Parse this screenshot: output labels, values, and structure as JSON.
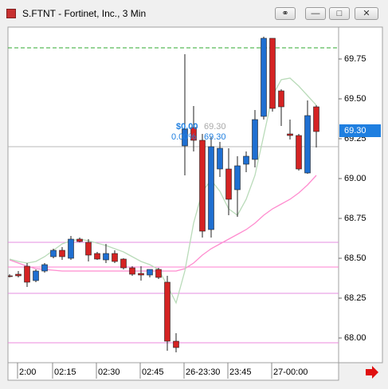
{
  "window": {
    "title": "S.FTNT - Fortinet, Inc., 3 Min"
  },
  "chart_data": {
    "type": "candlestick",
    "categories": [
      null,
      "2:00",
      null,
      null,
      null,
      "02:15",
      null,
      null,
      null,
      null,
      "02:30",
      null,
      null,
      null,
      null,
      "02:45",
      null,
      null,
      null,
      null,
      "26-23:30",
      null,
      null,
      null,
      null,
      "23:45",
      null,
      null,
      null,
      null,
      "27-00:00",
      null,
      null,
      null,
      null,
      null
    ],
    "open": [
      68.39,
      68.4,
      68.45,
      68.36,
      68.42,
      68.51,
      68.55,
      68.5,
      68.62,
      68.6,
      68.53,
      68.49,
      68.53,
      68.495,
      68.44,
      68.405,
      68.395,
      68.43,
      68.35,
      67.98,
      69.205,
      69.32,
      69.24,
      68.68,
      69.06,
      69.06,
      68.93,
      69.09,
      69.12,
      69.39,
      69.88,
      69.55,
      69.28,
      69.27,
      69.035,
      69.45
    ],
    "high": [
      68.4,
      68.42,
      68.47,
      68.43,
      68.47,
      68.56,
      68.57,
      68.64,
      68.63,
      68.62,
      68.54,
      68.59,
      68.55,
      68.5,
      68.45,
      68.45,
      68.43,
      68.44,
      68.39,
      68.03,
      69.78,
      69.455,
      69.28,
      69.26,
      69.23,
      69.19,
      69.14,
      69.17,
      69.43,
      69.89,
      69.88,
      69.56,
      69.37,
      69.28,
      69.49,
      69.46
    ],
    "low": [
      68.38,
      68.38,
      68.32,
      68.35,
      68.41,
      68.5,
      68.49,
      68.49,
      68.6,
      68.48,
      68.49,
      68.47,
      68.47,
      68.43,
      68.39,
      68.36,
      68.38,
      68.37,
      67.92,
      67.91,
      69.02,
      69.17,
      68.63,
      68.63,
      69.01,
      68.77,
      68.76,
      69.04,
      69.07,
      69.37,
      69.42,
      69.33,
      69.245,
      69.05,
      69.03,
      69.195
    ],
    "close": [
      68.385,
      68.39,
      68.35,
      68.42,
      68.46,
      68.55,
      68.51,
      68.62,
      68.605,
      68.52,
      68.495,
      68.53,
      68.48,
      68.44,
      68.4,
      68.395,
      68.43,
      68.38,
      67.98,
      67.94,
      69.31,
      69.24,
      68.67,
      69.2,
      69.19,
      68.87,
      69.08,
      69.14,
      69.37,
      69.88,
      69.44,
      69.45,
      69.27,
      69.06,
      69.395,
      69.295
    ],
    "up_color": "#1f6fd1",
    "down_color": "#d42323",
    "overlays": [
      {
        "color": "#ff8ccf",
        "values": [
          68.49,
          68.47,
          68.45,
          68.435,
          68.43,
          68.425,
          68.42,
          68.42,
          68.42,
          68.42,
          68.42,
          68.42,
          68.42,
          68.42,
          68.42,
          68.42,
          68.42,
          68.42,
          68.42,
          68.42,
          68.435,
          68.47,
          68.52,
          68.56,
          68.59,
          68.62,
          68.65,
          68.68,
          68.72,
          68.77,
          68.81,
          68.84,
          68.87,
          68.91,
          68.96,
          69.02
        ]
      },
      {
        "color": "#b9dbb9",
        "values": [
          68.495,
          68.48,
          68.47,
          68.48,
          68.51,
          68.55,
          68.59,
          68.61,
          68.62,
          68.61,
          68.595,
          68.58,
          68.56,
          68.54,
          68.51,
          68.48,
          68.46,
          68.43,
          68.33,
          68.22,
          68.42,
          68.72,
          68.92,
          68.99,
          68.92,
          68.81,
          68.77,
          68.87,
          69.02,
          69.27,
          69.52,
          69.62,
          69.63,
          69.58,
          69.52,
          69.46
        ]
      }
    ],
    "levels": [
      {
        "value": 69.82,
        "color": "#2fa82f",
        "dash": true
      },
      {
        "value": 69.2,
        "color": "#b8b8b8",
        "dash": false
      },
      {
        "value": 68.6,
        "color": "#e58ee0",
        "dash": false
      },
      {
        "value": 68.445,
        "color": "#ff7fd0",
        "dash": false
      },
      {
        "value": 68.28,
        "color": "#e58ee0",
        "dash": false
      },
      {
        "value": 67.97,
        "color": "#ee88dd",
        "dash": false
      }
    ],
    "ylim": [
      67.845,
      69.95
    ],
    "yticks": [
      {
        "value": 68.0,
        "label": "68.00"
      },
      68.25,
      {
        "value": 68.5,
        "label": "68.50"
      },
      68.75,
      {
        "value": 69.0,
        "label": "69.00"
      },
      69.25,
      {
        "value": 69.5,
        "label": "69.50"
      },
      69.75
    ],
    "last_price": {
      "value": 69.3,
      "label": "69.30"
    },
    "annotations": [
      "$0.00",
      "0.00%",
      "69.30",
      "69.30"
    ]
  }
}
